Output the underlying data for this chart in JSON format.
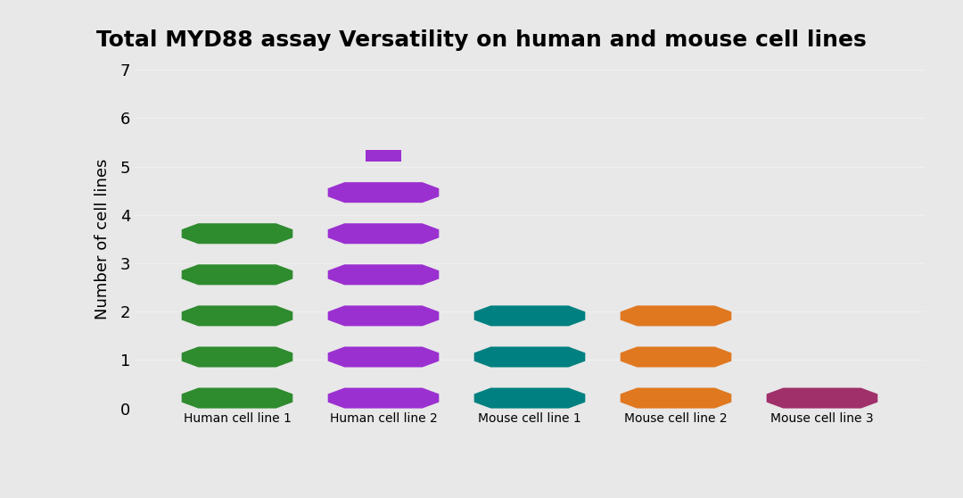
{
  "title": "Total MYD88 assay Versatility on human and mouse cell lines",
  "background_color": "#e8e8e8",
  "bottom_background": "#000000",
  "bars": [
    {
      "label": "Human cell line 1",
      "value": 5,
      "color": "#2e8b2e",
      "x": 0
    },
    {
      "label": "Human cell line 2",
      "value": 6,
      "color": "#9b30d0",
      "x": 1
    },
    {
      "label": "Mouse cell line 1",
      "value": 3,
      "color": "#008080",
      "x": 2
    },
    {
      "label": "Mouse cell line 2",
      "value": 3,
      "color": "#e07820",
      "x": 3
    },
    {
      "label": "Mouse cell line 3",
      "value": 1,
      "color": "#a0306a",
      "x": 4
    }
  ],
  "max_value": 7,
  "figsize": [
    10.8,
    5.58
  ],
  "dpi": 100,
  "title_fontsize": 18,
  "title_color": "#000000",
  "axis_label_color": "#000000"
}
